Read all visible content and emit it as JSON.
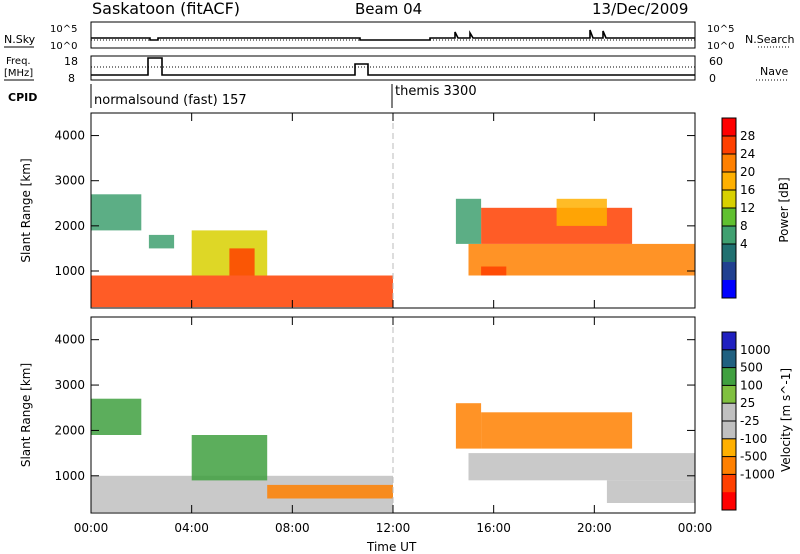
{
  "header": {
    "site": "Saskatoon (fitACF)",
    "beam": "Beam 04",
    "date": "13/Dec/2009"
  },
  "top_panels": {
    "nsky_label": "N.Sky",
    "nsky_ticks": [
      "10^5",
      "10^0"
    ],
    "nsearch_label": "N.Search",
    "nsearch_ticks": [
      "10^5",
      "10^0"
    ],
    "freq_label_1": "Freq.",
    "freq_label_2": "[MHz]",
    "freq_ticks": [
      "18",
      "8"
    ],
    "nave_label": "Nave",
    "nave_ticks": [
      "60",
      "0"
    ],
    "cpid_label": "CPID",
    "cpid_segments": [
      "normalsound (fast) 157",
      "themis 3300"
    ]
  },
  "power_colorbar": {
    "label": "Power [dB]",
    "ticks": [
      "28",
      "24",
      "20",
      "16",
      "12",
      "8",
      "4"
    ],
    "colors": [
      "#ff0000",
      "#ff4000",
      "#ff8000",
      "#ffb000",
      "#d8d000",
      "#60c030",
      "#40a070",
      "#207070",
      "#204090",
      "#0000ff"
    ]
  },
  "velocity_colorbar": {
    "label": "Velocity [m s^-1]",
    "ticks": [
      "1000",
      "500",
      "100",
      "25",
      "-25",
      "-100",
      "-500",
      "-1000"
    ],
    "colors": [
      "#2020c0",
      "#206080",
      "#40a040",
      "#80c040",
      "#c0c0c0",
      "#c0c0c0",
      "#ffb000",
      "#ff8000",
      "#ff4000",
      "#ff0000"
    ]
  },
  "chart_data": [
    {
      "type": "heatmap",
      "panel": "power",
      "ylabel": "Slant Range [km]",
      "y_ticks": [
        "4000",
        "3000",
        "2000",
        "1000"
      ],
      "ylim": [
        180,
        4500
      ],
      "x_ticks": [
        "00:00",
        "04:00",
        "08:00",
        "12:00",
        "16:00",
        "20:00",
        "00:00"
      ],
      "xlim_hours": [
        0,
        24
      ],
      "regions": [
        {
          "t0": 0.0,
          "t1": 12.0,
          "r0": 200,
          "r1": 900,
          "val": 26
        },
        {
          "t0": 0.0,
          "t1": 2.0,
          "r0": 1900,
          "r1": 2700,
          "val": 12
        },
        {
          "t0": 2.3,
          "t1": 3.3,
          "r0": 1500,
          "r1": 1800,
          "val": 12
        },
        {
          "t0": 4.0,
          "t1": 7.0,
          "r0": 900,
          "r1": 1900,
          "val": 18
        },
        {
          "t0": 5.5,
          "t1": 6.5,
          "r0": 900,
          "r1": 1500,
          "val": 26
        },
        {
          "t0": 15.0,
          "t1": 24.0,
          "r0": 900,
          "r1": 1600,
          "val": 24
        },
        {
          "t0": 15.5,
          "t1": 21.5,
          "r0": 1600,
          "r1": 2400,
          "val": 26
        },
        {
          "t0": 14.5,
          "t1": 15.5,
          "r0": 1600,
          "r1": 2600,
          "val": 12
        },
        {
          "t0": 15.5,
          "t1": 16.5,
          "r0": 900,
          "r1": 1100,
          "val": 28
        },
        {
          "t0": 18.5,
          "t1": 20.5,
          "r0": 2000,
          "r1": 2600,
          "val": 20
        }
      ]
    },
    {
      "type": "heatmap",
      "panel": "velocity",
      "ylabel": "Slant Range [km]",
      "y_ticks": [
        "4000",
        "3000",
        "2000",
        "1000"
      ],
      "ylim": [
        180,
        4500
      ],
      "x_ticks": [
        "00:00",
        "04:00",
        "08:00",
        "12:00",
        "16:00",
        "20:00",
        "00:00"
      ],
      "xlim_hours": [
        0,
        24
      ],
      "xlabel": "Time UT",
      "regions": [
        {
          "t0": 0.0,
          "t1": 12.0,
          "r0": 200,
          "r1": 1000,
          "val": 0
        },
        {
          "t0": 0.0,
          "t1": 2.0,
          "r0": 1900,
          "r1": 2700,
          "val": 120
        },
        {
          "t0": 4.0,
          "t1": 7.0,
          "r0": 900,
          "r1": 1900,
          "val": 100
        },
        {
          "t0": 7.0,
          "t1": 12.0,
          "r0": 500,
          "r1": 800,
          "val": -120
        },
        {
          "t0": 15.0,
          "t1": 24.0,
          "r0": 900,
          "r1": 1500,
          "val": 0
        },
        {
          "t0": 15.5,
          "t1": 21.5,
          "r0": 1600,
          "r1": 2400,
          "val": -200
        },
        {
          "t0": 14.5,
          "t1": 15.5,
          "r0": 1600,
          "r1": 2600,
          "val": -200
        },
        {
          "t0": 20.5,
          "t1": 24.0,
          "r0": 400,
          "r1": 900,
          "val": 0
        }
      ]
    }
  ]
}
